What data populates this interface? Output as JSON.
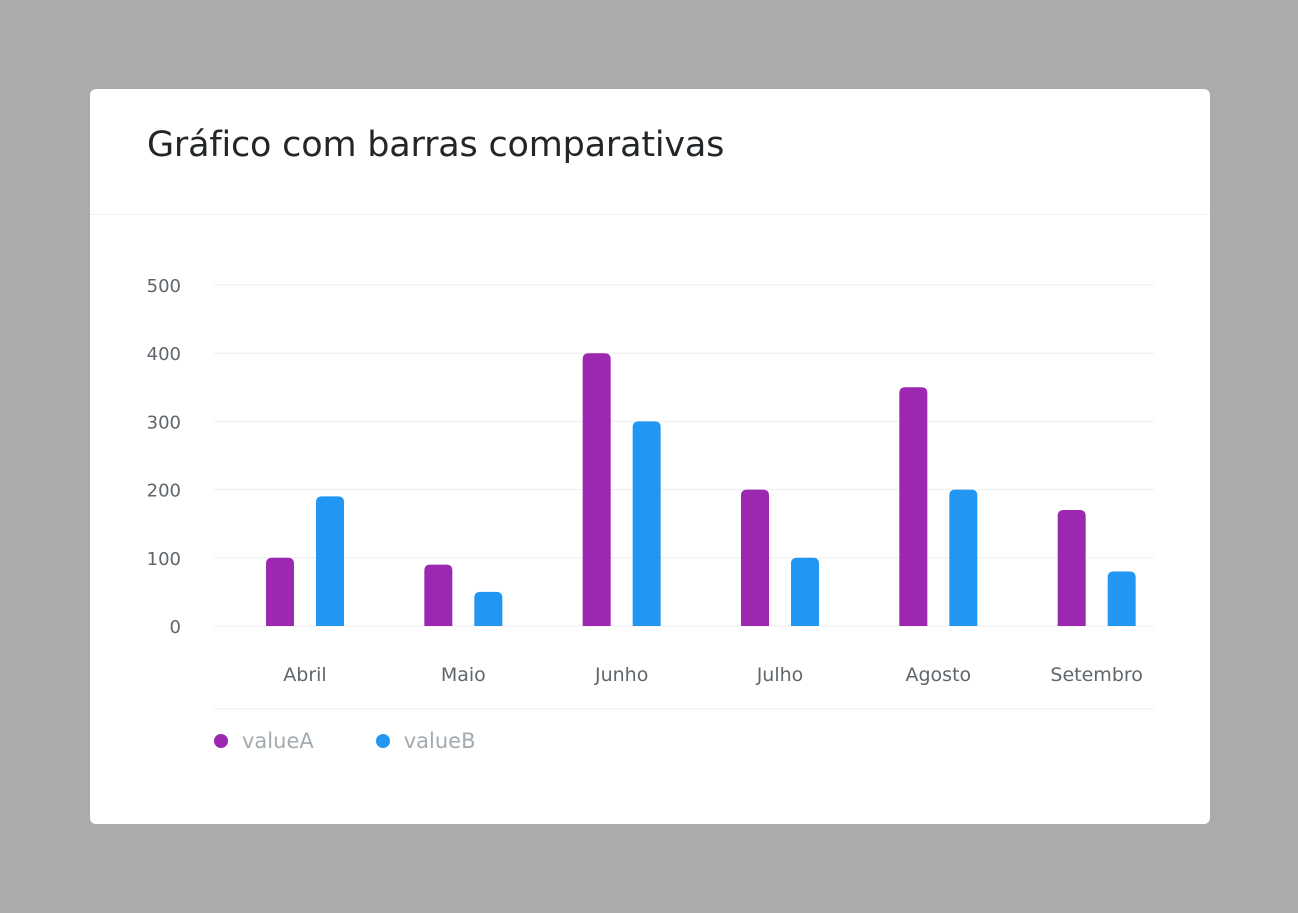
{
  "card": {
    "title": "Gráfico com barras comparativas"
  },
  "chart_data": {
    "type": "bar",
    "title": "Gráfico com barras comparativas",
    "categories": [
      "Abril",
      "Maio",
      "Junho",
      "Julho",
      "Agosto",
      "Setembro"
    ],
    "series": [
      {
        "name": "valueA",
        "color": "#9c27b0",
        "values": [
          100,
          90,
          400,
          200,
          350,
          170
        ]
      },
      {
        "name": "valueB",
        "color": "#2196f3",
        "values": [
          190,
          50,
          300,
          100,
          200,
          80
        ]
      }
    ],
    "yticks": [
      "0",
      "100",
      "200",
      "300",
      "400",
      "500"
    ],
    "ylim": [
      0,
      500
    ],
    "grid": true,
    "legend_position": "bottom-left",
    "xlabel": "",
    "ylabel": ""
  }
}
